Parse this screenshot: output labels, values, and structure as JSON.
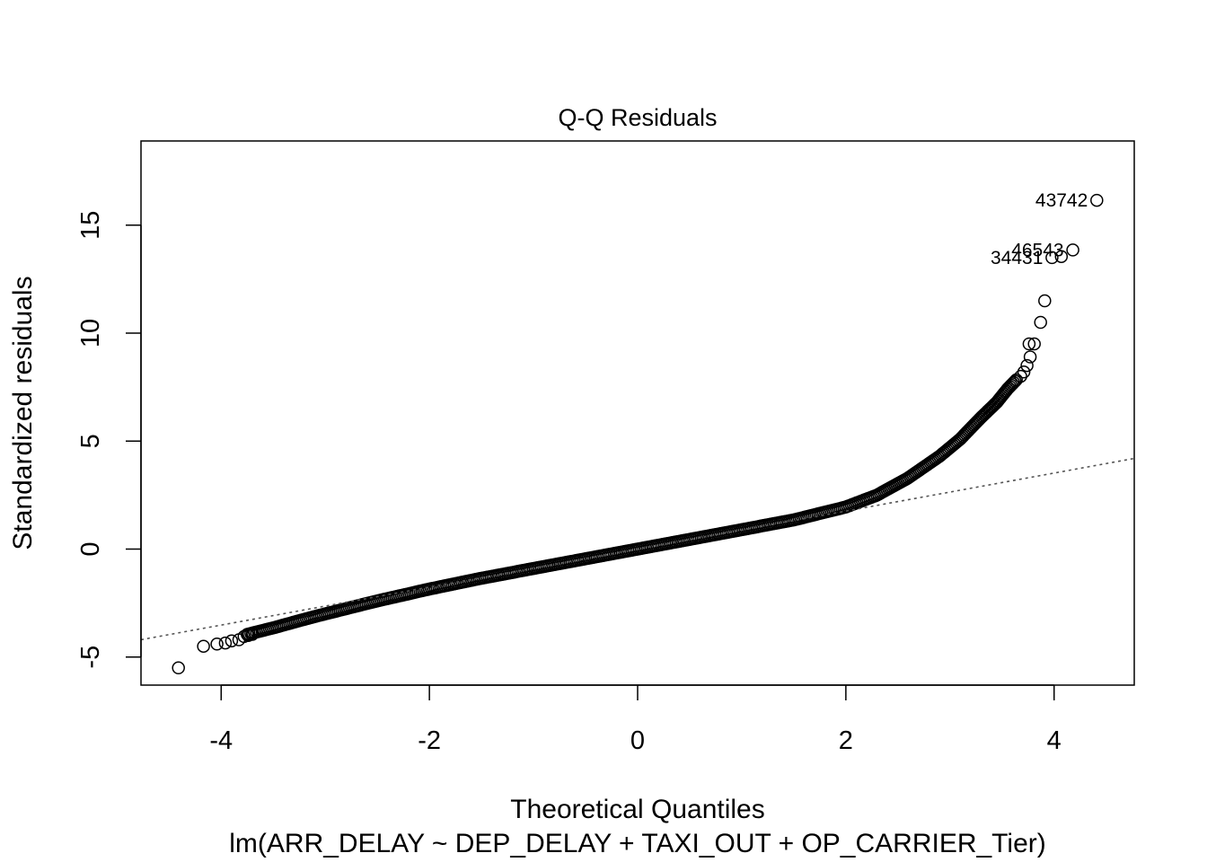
{
  "chart_data": {
    "type": "scatter",
    "title": "Q-Q Residuals",
    "xlabel": "Theoretical Quantiles",
    "ylabel": "Standardized residuals",
    "subtitle": "lm(ARR_DELAY ~ DEP_DELAY + TAXI_OUT + OP_CARRIER_Tier)",
    "xlim": [
      -4.77,
      4.77
    ],
    "ylim": [
      -6.3,
      18.9
    ],
    "xticks": [
      -4,
      -2,
      0,
      2,
      4
    ],
    "yticks": [
      -5,
      0,
      5,
      10,
      15
    ],
    "grid": false,
    "reference_line": {
      "intercept": 0.0,
      "slope": 0.88,
      "style": "dotted"
    },
    "curve": [
      [
        -3.75,
        -3.95
      ],
      [
        -3.5,
        -3.65
      ],
      [
        -3.2,
        -3.25
      ],
      [
        -3.0,
        -3.0
      ],
      [
        -2.5,
        -2.4
      ],
      [
        -2.0,
        -1.85
      ],
      [
        -1.5,
        -1.35
      ],
      [
        -1.0,
        -0.9
      ],
      [
        -0.5,
        -0.45
      ],
      [
        0.0,
        0.0
      ],
      [
        0.5,
        0.45
      ],
      [
        1.0,
        0.9
      ],
      [
        1.5,
        1.35
      ],
      [
        2.0,
        1.95
      ],
      [
        2.3,
        2.5
      ],
      [
        2.6,
        3.3
      ],
      [
        2.9,
        4.3
      ],
      [
        3.1,
        5.1
      ],
      [
        3.3,
        6.1
      ],
      [
        3.45,
        6.8
      ],
      [
        3.55,
        7.4
      ],
      [
        3.65,
        7.9
      ]
    ],
    "tail_points": [
      [
        -4.41,
        -5.5
      ],
      [
        -4.17,
        -4.5
      ],
      [
        -4.04,
        -4.4
      ],
      [
        -3.96,
        -4.35
      ],
      [
        -3.9,
        -4.25
      ],
      [
        -3.83,
        -4.2
      ],
      [
        -3.78,
        -4.05
      ],
      [
        -3.74,
        -4.0
      ],
      [
        -3.7,
        -3.95
      ],
      [
        3.68,
        8.0
      ],
      [
        3.71,
        8.2
      ],
      [
        3.74,
        8.5
      ],
      [
        3.77,
        8.9
      ],
      [
        3.76,
        9.5
      ],
      [
        3.81,
        9.5
      ],
      [
        3.87,
        10.5
      ],
      [
        3.91,
        11.5
      ],
      [
        3.98,
        13.5
      ],
      [
        4.07,
        13.55
      ],
      [
        4.18,
        13.85
      ],
      [
        4.41,
        16.15
      ]
    ],
    "labeled_points": [
      {
        "label": "43742",
        "x": 4.41,
        "y": 16.15
      },
      {
        "label": "46543",
        "x": 4.18,
        "y": 13.85
      },
      {
        "label": "34431",
        "x": 3.98,
        "y": 13.5
      }
    ]
  }
}
